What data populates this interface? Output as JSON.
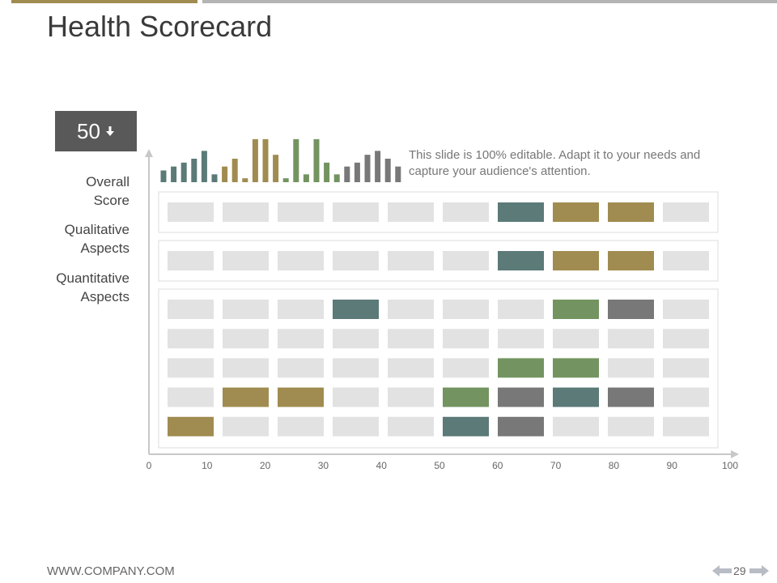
{
  "title": "Health Scorecard",
  "score": {
    "value": "50",
    "icon": "down-arrow-icon"
  },
  "row_labels": {
    "overall": {
      "line1": "Overall",
      "line2": "Score"
    },
    "qualitative": {
      "line1": "Qualitative",
      "line2": "Aspects"
    },
    "quantitative": {
      "line1": "Quantitative",
      "line2": "Aspects"
    }
  },
  "note": "This slide is 100% editable. Adapt it to your needs and capture your audience's attention.",
  "footer": {
    "url": "WWW.COMPANY.COM",
    "page": "29"
  },
  "colors": {
    "teal": "#5b7a78",
    "olive": "#a08c50",
    "green": "#739460",
    "gray": "#787878",
    "empty": "#e2e2e2",
    "axis": "#c8c8c8",
    "score_box": "#595959",
    "top_bar_left": "#a08c50",
    "top_bar_right": "#b4b4b4"
  },
  "chart_data": [
    {
      "type": "bar",
      "description": "mini bar sparkline",
      "x": [
        1,
        2,
        3,
        4,
        5,
        6,
        7,
        8,
        9,
        10,
        11,
        12,
        13,
        14,
        15,
        16,
        17,
        18,
        19,
        20,
        21,
        22,
        23,
        24
      ],
      "values": [
        3,
        4,
        5,
        6,
        8,
        2,
        4,
        6,
        1,
        11,
        11,
        7,
        1,
        11,
        2,
        11,
        5,
        2,
        4,
        5,
        7,
        8,
        6,
        4
      ],
      "colors": [
        "teal",
        "teal",
        "teal",
        "teal",
        "teal",
        "teal",
        "olive",
        "olive",
        "olive",
        "olive",
        "olive",
        "olive",
        "green",
        "green",
        "green",
        "green",
        "green",
        "green",
        "gray",
        "gray",
        "gray",
        "gray",
        "gray",
        "gray"
      ],
      "ylim": [
        0,
        12
      ]
    },
    {
      "type": "heatmap",
      "title": "Health Scorecard",
      "x_ticks": [
        "0",
        "10",
        "20",
        "30",
        "40",
        "50",
        "60",
        "70",
        "80",
        "90",
        "100"
      ],
      "xlim": [
        0,
        100
      ],
      "columns": 10,
      "groups": [
        {
          "name": "Overall Score",
          "rows": [
            [
              "empty",
              "empty",
              "empty",
              "empty",
              "empty",
              "empty",
              "teal",
              "olive",
              "olive",
              "empty"
            ]
          ]
        },
        {
          "name": "Qualitative Aspects",
          "rows": [
            [
              "empty",
              "empty",
              "empty",
              "empty",
              "empty",
              "empty",
              "teal",
              "olive",
              "olive",
              "empty"
            ]
          ]
        },
        {
          "name": "Quantitative Aspects",
          "rows": [
            [
              "empty",
              "empty",
              "empty",
              "teal",
              "empty",
              "empty",
              "empty",
              "green",
              "gray",
              "empty"
            ],
            [
              "empty",
              "empty",
              "empty",
              "empty",
              "empty",
              "empty",
              "empty",
              "empty",
              "empty",
              "empty"
            ],
            [
              "empty",
              "empty",
              "empty",
              "empty",
              "empty",
              "empty",
              "green",
              "green",
              "empty",
              "empty"
            ],
            [
              "empty",
              "olive",
              "olive",
              "empty",
              "empty",
              "green",
              "gray",
              "teal",
              "gray",
              "empty"
            ],
            [
              "olive",
              "empty",
              "empty",
              "empty",
              "empty",
              "teal",
              "gray",
              "empty",
              "empty",
              "empty"
            ]
          ]
        }
      ]
    }
  ]
}
